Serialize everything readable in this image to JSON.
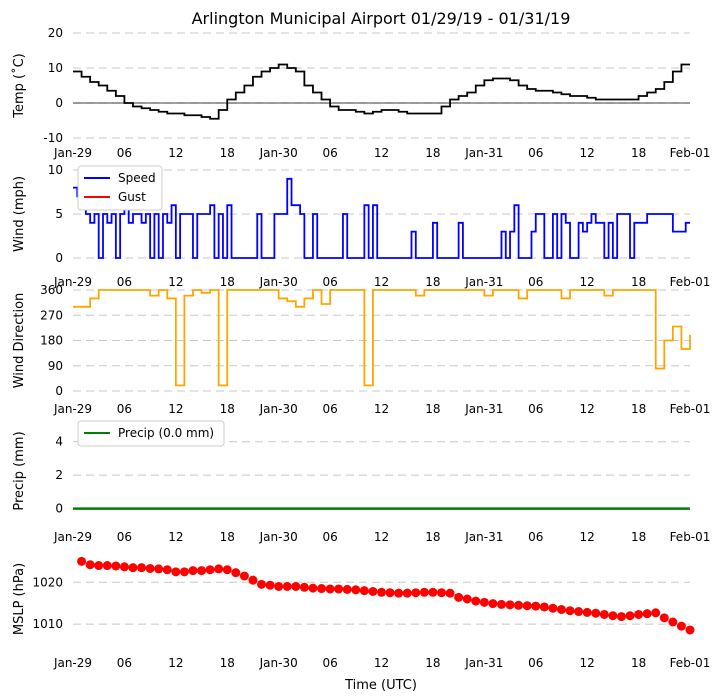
{
  "title": "Arlington Municipal Airport 01/29/19 - 01/31/19",
  "xlabel": "Time (UTC)",
  "x_ticks": [
    "Jan-29",
    "06",
    "12",
    "18",
    "Jan-30",
    "06",
    "12",
    "18",
    "Jan-31",
    "06",
    "12",
    "18",
    "Feb-01"
  ],
  "colors": {
    "temp": "#000000",
    "speed": "#0000ff",
    "gust": "#ff0000",
    "dir": "#ffa500",
    "precip": "#008000",
    "mslp": "#ff0000",
    "grid": "#c8c8c8"
  },
  "chart_data": [
    {
      "type": "line",
      "name": "temperature",
      "ylabel": "Temp ($^\\circ$C)",
      "ylabel_display": "Temp (˚C)",
      "ylim": [
        -10,
        20
      ],
      "yticks": [
        -10,
        0,
        10,
        20
      ],
      "series": [
        {
          "name": "Temp",
          "x_hours": [
            0,
            1,
            2,
            3,
            4,
            5,
            6,
            7,
            8,
            9,
            10,
            11,
            12,
            13,
            14,
            15,
            16,
            17,
            18,
            19,
            20,
            21,
            22,
            23,
            24,
            25,
            26,
            27,
            28,
            29,
            30,
            31,
            32,
            33,
            34,
            35,
            36,
            37,
            38,
            39,
            40,
            41,
            42,
            43,
            44,
            45,
            46,
            47,
            48,
            49,
            50,
            51,
            52,
            53,
            54,
            55,
            56,
            57,
            58,
            59,
            60,
            61,
            62,
            63,
            64,
            65,
            66,
            67,
            68,
            69,
            70,
            71,
            72
          ],
          "values": [
            9,
            7.5,
            6,
            5,
            3.5,
            2,
            0,
            -1,
            -1.5,
            -2,
            -2.5,
            -3,
            -3,
            -3.5,
            -3.5,
            -4,
            -4.5,
            -2,
            1,
            3,
            5,
            7.5,
            9,
            10,
            11,
            10,
            9,
            5,
            3,
            1,
            -1,
            -2,
            -2,
            -2.5,
            -3,
            -2.5,
            -2,
            -2,
            -2.5,
            -3,
            -3,
            -3,
            -3,
            -1,
            1,
            2,
            3,
            5,
            6.5,
            7,
            7,
            6.5,
            5,
            4,
            3.5,
            3.5,
            3,
            2.5,
            2,
            2,
            1.5,
            1,
            1,
            1,
            1,
            1,
            2,
            3,
            4,
            6,
            9,
            11,
            11
          ]
        }
      ]
    },
    {
      "type": "line",
      "name": "wind",
      "ylabel": "Wind (mph)",
      "ylim": [
        0,
        10
      ],
      "yticks": [
        0,
        5,
        10
      ],
      "legend": [
        "Speed",
        "Gust"
      ],
      "series": [
        {
          "name": "Speed",
          "x_hours": [
            0,
            0.5,
            1,
            1.5,
            2,
            2.5,
            3,
            3.5,
            4,
            4.5,
            5,
            5.5,
            6,
            6.5,
            7,
            7.5,
            8,
            8.5,
            9,
            9.5,
            10,
            10.5,
            11,
            11.5,
            12,
            12.5,
            13,
            13.5,
            14,
            14.5,
            15,
            15.5,
            16,
            16.5,
            17,
            17.5,
            18,
            18.5,
            19,
            19.5,
            20,
            20.5,
            21,
            21.5,
            22,
            22.5,
            23,
            23.5,
            24,
            24.5,
            25,
            25.5,
            26,
            26.5,
            27,
            27.5,
            28,
            28.5,
            29,
            29.5,
            30,
            30.5,
            31,
            31.5,
            32,
            32.5,
            33,
            33.5,
            34,
            34.5,
            35,
            35.5,
            36,
            36.5,
            37,
            37.5,
            38,
            38.5,
            39,
            39.5,
            40,
            40.5,
            41,
            41.5,
            42,
            42.5,
            43,
            43.5,
            44,
            44.5,
            45,
            45.5,
            46,
            46.5,
            47,
            47.5,
            48,
            48.5,
            49,
            49.5,
            50,
            50.5,
            51,
            51.5,
            52,
            52.5,
            53,
            53.5,
            54,
            54.5,
            55,
            55.5,
            56,
            56.5,
            57,
            57.5,
            58,
            58.5,
            59,
            59.5,
            60,
            60.5,
            61,
            61.5,
            62,
            62.5,
            63,
            63.5,
            64,
            64.5,
            65,
            65.5,
            66,
            66.5,
            67,
            67.5,
            68,
            68.5,
            69,
            69.5,
            70,
            70.5,
            71,
            71.5,
            72
          ],
          "values": [
            8,
            7,
            6,
            5,
            4,
            5,
            0,
            5,
            4,
            5,
            0,
            5,
            6,
            4,
            5,
            5,
            4,
            5,
            0,
            5,
            0,
            5,
            4,
            6,
            0,
            5,
            5,
            5,
            0,
            5,
            5,
            5,
            6,
            0,
            5,
            0,
            6,
            0,
            0,
            0,
            0,
            0,
            0,
            5,
            0,
            0,
            0,
            5,
            5,
            5,
            9,
            6,
            6,
            5,
            0,
            0,
            5,
            0,
            0,
            0,
            0,
            0,
            0,
            5,
            0,
            0,
            0,
            0,
            6,
            0,
            6,
            0,
            0,
            0,
            0,
            0,
            0,
            0,
            0,
            3,
            0,
            0,
            0,
            0,
            4,
            0,
            0,
            0,
            0,
            0,
            4,
            0,
            0,
            0,
            0,
            0,
            0,
            0,
            0,
            0,
            3,
            0,
            3,
            6,
            0,
            0,
            0,
            3,
            5,
            5,
            0,
            0,
            5,
            0,
            5,
            4,
            0,
            0,
            4,
            3,
            4,
            5,
            4,
            4,
            0,
            4,
            0,
            5,
            5,
            5,
            0,
            4,
            4,
            4,
            5,
            5,
            5,
            5,
            5,
            5,
            3,
            3,
            3,
            4,
            4
          ]
        },
        {
          "name": "Gust",
          "x_hours": [],
          "values": []
        }
      ]
    },
    {
      "type": "line",
      "name": "wind_direction",
      "ylabel": "Wind Direction",
      "ylim": [
        0,
        360
      ],
      "yticks": [
        0,
        90,
        180,
        270,
        360
      ],
      "series": [
        {
          "name": "Direction",
          "x_hours": [
            0,
            1,
            2,
            3,
            4,
            5,
            6,
            7,
            8,
            9,
            10,
            11,
            12,
            13,
            14,
            15,
            16,
            17,
            18,
            19,
            20,
            21,
            22,
            23,
            24,
            25,
            26,
            27,
            28,
            29,
            30,
            31,
            32,
            33,
            34,
            35,
            36,
            37,
            38,
            39,
            40,
            41,
            42,
            43,
            44,
            45,
            46,
            47,
            48,
            49,
            50,
            51,
            52,
            53,
            54,
            55,
            56,
            57,
            58,
            59,
            60,
            61,
            62,
            63,
            64,
            65,
            66,
            67,
            68,
            69,
            70,
            71,
            72
          ],
          "values": [
            300,
            300,
            330,
            360,
            360,
            360,
            360,
            360,
            360,
            340,
            360,
            330,
            20,
            340,
            360,
            350,
            360,
            20,
            360,
            360,
            360,
            360,
            360,
            360,
            330,
            320,
            300,
            330,
            360,
            310,
            360,
            360,
            360,
            360,
            20,
            360,
            360,
            360,
            360,
            360,
            340,
            360,
            360,
            360,
            360,
            360,
            360,
            360,
            340,
            360,
            360,
            360,
            330,
            360,
            360,
            360,
            360,
            330,
            360,
            360,
            360,
            360,
            340,
            360,
            360,
            360,
            360,
            360,
            80,
            180,
            230,
            150,
            200
          ]
        }
      ]
    },
    {
      "type": "line",
      "name": "precipitation",
      "ylabel": "Precip (mm)",
      "ylim": [
        -0.5,
        5
      ],
      "yticks": [
        0,
        2,
        4
      ],
      "legend": [
        "Precip (0.0 mm)"
      ],
      "series": [
        {
          "name": "Precip",
          "x_hours": [
            0,
            72
          ],
          "values": [
            0,
            0
          ]
        }
      ]
    },
    {
      "type": "scatter",
      "name": "mslp",
      "ylabel": "MSLP (hPa)",
      "ylim": [
        1005,
        1027
      ],
      "yticks": [
        1010,
        1020
      ],
      "series": [
        {
          "name": "MSLP",
          "x_hours": [
            1,
            2,
            3,
            4,
            5,
            6,
            7,
            8,
            9,
            10,
            11,
            12,
            13,
            14,
            15,
            16,
            17,
            18,
            19,
            20,
            21,
            22,
            23,
            24,
            25,
            26,
            27,
            28,
            29,
            30,
            31,
            32,
            33,
            34,
            35,
            36,
            37,
            38,
            39,
            40,
            41,
            42,
            43,
            44,
            45,
            46,
            47,
            48,
            49,
            50,
            51,
            52,
            53,
            54,
            55,
            56,
            57,
            58,
            59,
            60,
            61,
            62,
            63,
            64,
            65,
            66,
            67,
            68,
            69,
            70,
            71,
            72
          ],
          "values": [
            1025,
            1024.2,
            1024,
            1024,
            1023.9,
            1023.7,
            1023.5,
            1023.5,
            1023.3,
            1023.2,
            1023,
            1022.5,
            1022.5,
            1022.8,
            1022.8,
            1023,
            1023.2,
            1023,
            1022.3,
            1021.5,
            1020.5,
            1019.5,
            1019.3,
            1019,
            1019,
            1019,
            1018.8,
            1018.6,
            1018.5,
            1018.4,
            1018.4,
            1018.3,
            1018.2,
            1018,
            1017.8,
            1017.6,
            1017.5,
            1017.4,
            1017.4,
            1017.5,
            1017.6,
            1017.6,
            1017.5,
            1017.4,
            1016.4,
            1016,
            1015.5,
            1015.2,
            1014.9,
            1014.7,
            1014.6,
            1014.5,
            1014.4,
            1014.3,
            1014.1,
            1013.8,
            1013.5,
            1013.2,
            1013,
            1012.8,
            1012.6,
            1012.3,
            1012,
            1011.8,
            1012,
            1012.3,
            1012.5,
            1012.7,
            1011.5,
            1010.5,
            1009.5,
            1008.6
          ]
        }
      ]
    }
  ]
}
